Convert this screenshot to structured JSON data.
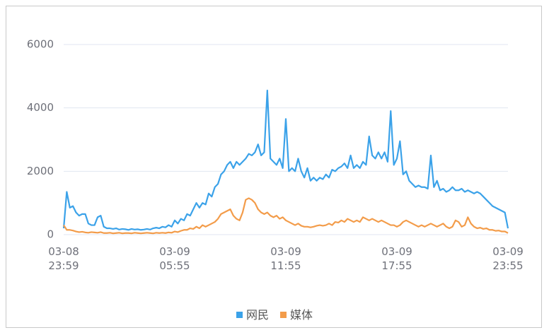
{
  "chart_data": {
    "type": "line",
    "categories": [
      "03-08\n23:59",
      null,
      null,
      null,
      null,
      null,
      null,
      null,
      null,
      null,
      null,
      null,
      null,
      null,
      null,
      null,
      null,
      null,
      null,
      null,
      null,
      null,
      null,
      null,
      null,
      null,
      null,
      null,
      null,
      null,
      null,
      null,
      null,
      null,
      null,
      null,
      "03-09\n05:55",
      null,
      null,
      null,
      null,
      null,
      null,
      null,
      null,
      null,
      null,
      null,
      null,
      null,
      null,
      null,
      null,
      null,
      null,
      null,
      null,
      null,
      null,
      null,
      null,
      null,
      null,
      null,
      null,
      null,
      null,
      null,
      null,
      null,
      null,
      null,
      "03-09\n11:55",
      null,
      null,
      null,
      null,
      null,
      null,
      null,
      null,
      null,
      null,
      null,
      null,
      null,
      null,
      null,
      null,
      null,
      null,
      null,
      null,
      null,
      null,
      null,
      null,
      null,
      null,
      null,
      null,
      null,
      null,
      null,
      null,
      null,
      null,
      null,
      "03-09\n17:55",
      null,
      null,
      null,
      null,
      null,
      null,
      null,
      null,
      null,
      null,
      null,
      null,
      null,
      null,
      null,
      null,
      null,
      null,
      null,
      null,
      null,
      null,
      null,
      null,
      null,
      null,
      null,
      null,
      null,
      null,
      null,
      null,
      null,
      null,
      null,
      "03-09\n23:55"
    ],
    "series": [
      {
        "name": "网民",
        "color": "#3ba2e9",
        "values": [
          200,
          1350,
          850,
          900,
          700,
          600,
          650,
          650,
          350,
          300,
          300,
          550,
          600,
          250,
          200,
          200,
          180,
          200,
          160,
          180,
          170,
          150,
          180,
          160,
          170,
          150,
          160,
          180,
          160,
          200,
          220,
          200,
          250,
          230,
          300,
          250,
          450,
          350,
          500,
          450,
          650,
          600,
          800,
          1000,
          850,
          1000,
          950,
          1300,
          1200,
          1500,
          1600,
          1900,
          2000,
          2200,
          2300,
          2100,
          2300,
          2200,
          2300,
          2400,
          2550,
          2500,
          2600,
          2850,
          2500,
          2600,
          4550,
          2400,
          2300,
          2200,
          2400,
          2100,
          3650,
          2000,
          2100,
          2000,
          2400,
          2000,
          1800,
          2100,
          1700,
          1800,
          1700,
          1800,
          1750,
          1900,
          1800,
          2050,
          2000,
          2100,
          2150,
          2250,
          2100,
          2500,
          2100,
          2200,
          2100,
          2300,
          2200,
          3100,
          2500,
          2400,
          2600,
          2400,
          2600,
          2300,
          3900,
          2200,
          2400,
          2950,
          1900,
          2000,
          1700,
          1600,
          1500,
          1550,
          1500,
          1500,
          1450,
          2500,
          1500,
          1700,
          1400,
          1450,
          1350,
          1400,
          1500,
          1400,
          1400,
          1450,
          1350,
          1400,
          1350,
          1300,
          1350,
          1300,
          1200,
          1100,
          1000,
          900,
          850,
          800,
          750,
          700,
          200
        ]
      },
      {
        "name": "媒体",
        "color": "#f39c4a",
        "values": [
          300,
          150,
          150,
          130,
          100,
          80,
          90,
          70,
          60,
          80,
          70,
          60,
          80,
          50,
          50,
          60,
          40,
          50,
          60,
          40,
          50,
          50,
          40,
          60,
          50,
          40,
          50,
          60,
          50,
          40,
          60,
          50,
          60,
          50,
          70,
          60,
          100,
          80,
          120,
          150,
          150,
          200,
          180,
          250,
          200,
          300,
          250,
          300,
          350,
          400,
          500,
          650,
          700,
          750,
          800,
          600,
          500,
          450,
          700,
          1100,
          1150,
          1100,
          1000,
          800,
          700,
          650,
          700,
          600,
          550,
          600,
          500,
          550,
          450,
          400,
          350,
          300,
          350,
          280,
          250,
          250,
          230,
          250,
          280,
          300,
          280,
          300,
          350,
          300,
          400,
          380,
          450,
          400,
          500,
          450,
          400,
          450,
          400,
          550,
          500,
          450,
          500,
          450,
          400,
          450,
          400,
          350,
          300,
          300,
          250,
          300,
          400,
          450,
          400,
          350,
          300,
          250,
          300,
          250,
          300,
          350,
          300,
          250,
          300,
          350,
          250,
          200,
          250,
          450,
          400,
          250,
          300,
          550,
          350,
          250,
          200,
          220,
          180,
          200,
          150,
          150,
          120,
          130,
          100,
          100,
          50
        ]
      }
    ],
    "ylim": [
      0,
      6000
    ],
    "yticks": [
      0,
      2000,
      4000,
      6000
    ],
    "grid": true
  }
}
